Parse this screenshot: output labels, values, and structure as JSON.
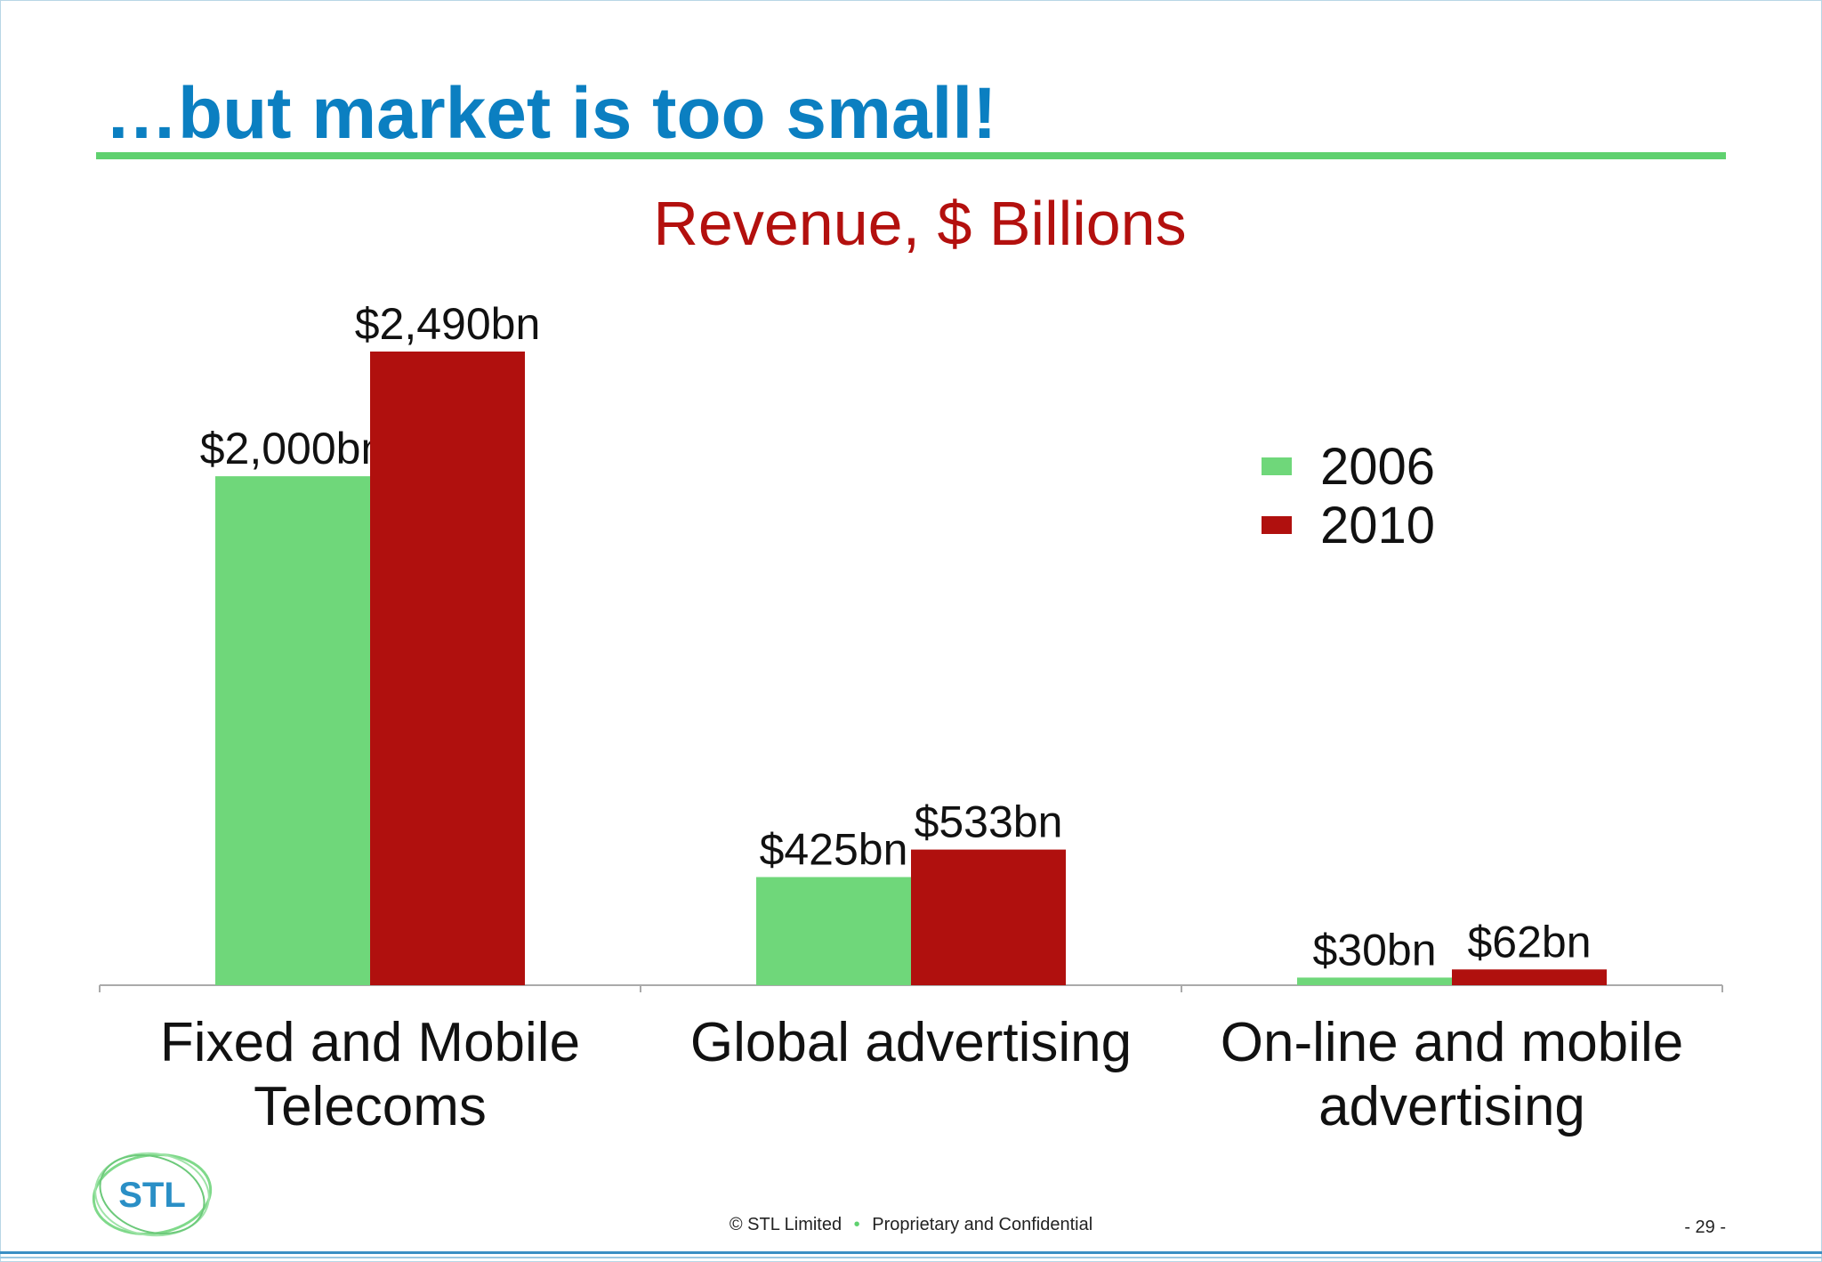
{
  "slide": {
    "title": "…but market is too small!",
    "logo_text": "STL",
    "footer": {
      "copyright_symbol": "©",
      "company": "STL Limited",
      "confidential": "Proprietary and Confidential"
    },
    "page_number": "- 29 -"
  },
  "colors": {
    "title": "#0b7fc1",
    "rule": "#5fd16f",
    "series_2006": "#6fd77a",
    "series_2010": "#b0100e",
    "chart_title": "#b3100e"
  },
  "chart_data": {
    "type": "bar",
    "title": "Revenue, $ Billions",
    "categories": [
      [
        "Fixed and Mobile",
        "Telecoms"
      ],
      [
        "Global advertising"
      ],
      [
        "On-line and mobile",
        "advertising"
      ]
    ],
    "series": [
      {
        "name": "2006",
        "values": [
          2000,
          425,
          30
        ],
        "labels": [
          "$2,000bn",
          "$425bn",
          "$30bn"
        ]
      },
      {
        "name": "2010",
        "values": [
          2490,
          533,
          62
        ],
        "labels": [
          "$2,490bn",
          "$533bn",
          "$62bn"
        ]
      }
    ],
    "ylim": [
      0,
      2500
    ],
    "grid": false,
    "legend": "top-right"
  }
}
